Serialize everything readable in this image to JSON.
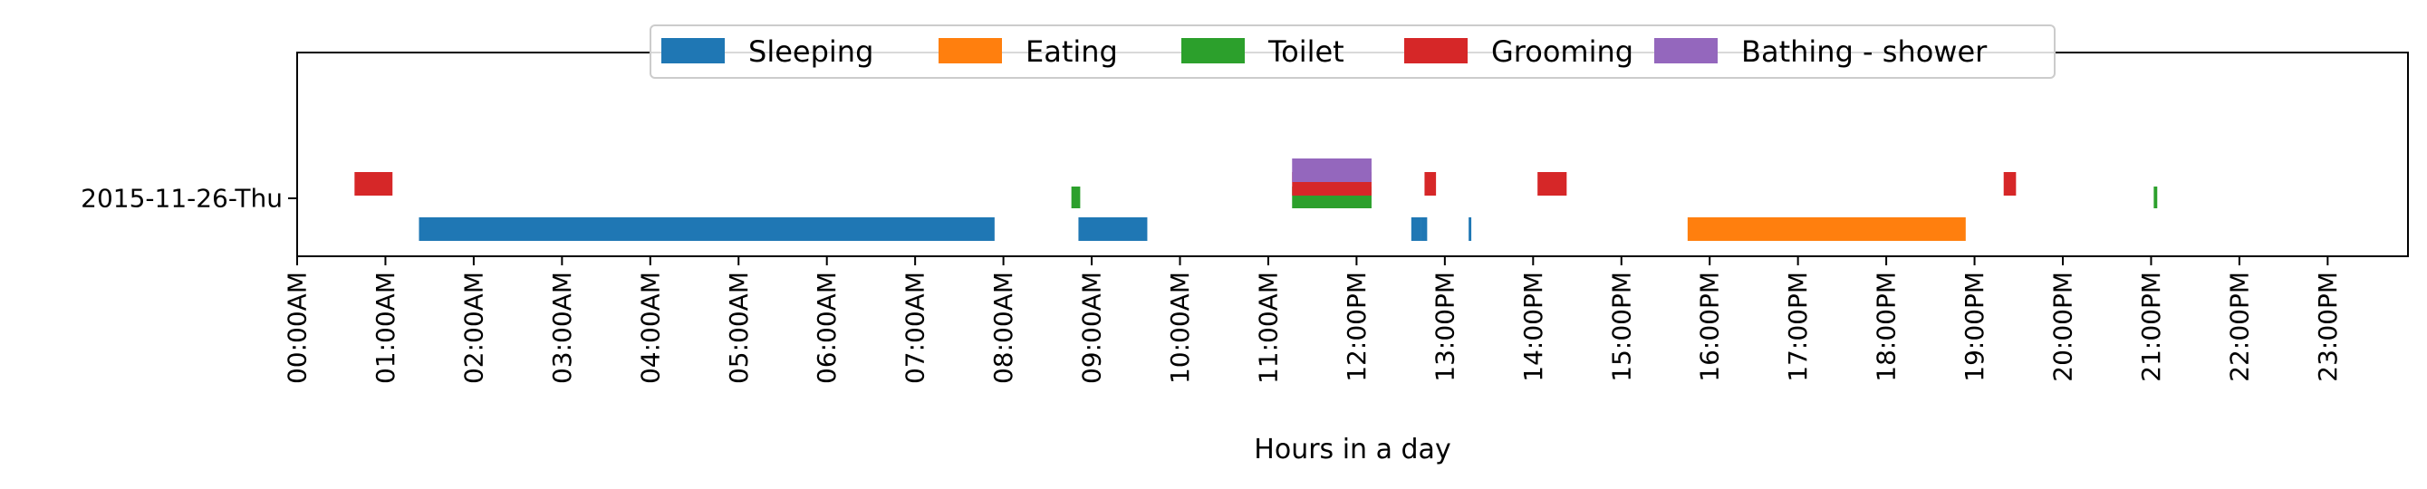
{
  "chart_data": {
    "type": "bar",
    "orientation": "horizontal-timeline",
    "title": "",
    "xlabel": "Hours in a day",
    "ylabel": "",
    "xlim": [
      0,
      24
    ],
    "x_ticks": [
      "00:00AM",
      "01:00AM",
      "02:00AM",
      "03:00AM",
      "04:00AM",
      "05:00AM",
      "06:00AM",
      "07:00AM",
      "08:00AM",
      "09:00AM",
      "10:00AM",
      "11:00AM",
      "12:00PM",
      "13:00PM",
      "14:00PM",
      "15:00PM",
      "16:00PM",
      "17:00PM",
      "18:00PM",
      "19:00PM",
      "20:00PM",
      "21:00PM",
      "22:00PM",
      "23:00PM"
    ],
    "y_categories": [
      "2015-11-26-Thu"
    ],
    "grid": false,
    "legend_position": "top-center",
    "series": [
      {
        "name": "Sleeping",
        "color": "#1f77b4",
        "lane": 0,
        "segments": [
          [
            1.38,
            7.9
          ],
          [
            8.85,
            9.63
          ],
          [
            12.62,
            12.73
          ],
          [
            12.73,
            12.8
          ],
          [
            13.27,
            13.3
          ]
        ]
      },
      {
        "name": "Eating",
        "color": "#ff7f0e",
        "lane": 0,
        "segments": [
          [
            15.75,
            18.9
          ]
        ]
      },
      {
        "name": "Toilet",
        "color": "#2ca02c",
        "lane": 1,
        "segments": [
          [
            8.77,
            8.87
          ],
          [
            11.27,
            12.17
          ],
          [
            21.03,
            21.07
          ]
        ]
      },
      {
        "name": "Grooming",
        "color": "#d62728",
        "lane": 2,
        "segments": [
          [
            0.65,
            1.08
          ],
          [
            11.27,
            12.17
          ],
          [
            12.77,
            12.9
          ],
          [
            14.05,
            14.38
          ],
          [
            19.33,
            19.47
          ]
        ]
      },
      {
        "name": "Bathing - shower",
        "color": "#9467bd",
        "lane": 3,
        "segments": [
          [
            11.27,
            12.17
          ]
        ]
      }
    ]
  }
}
